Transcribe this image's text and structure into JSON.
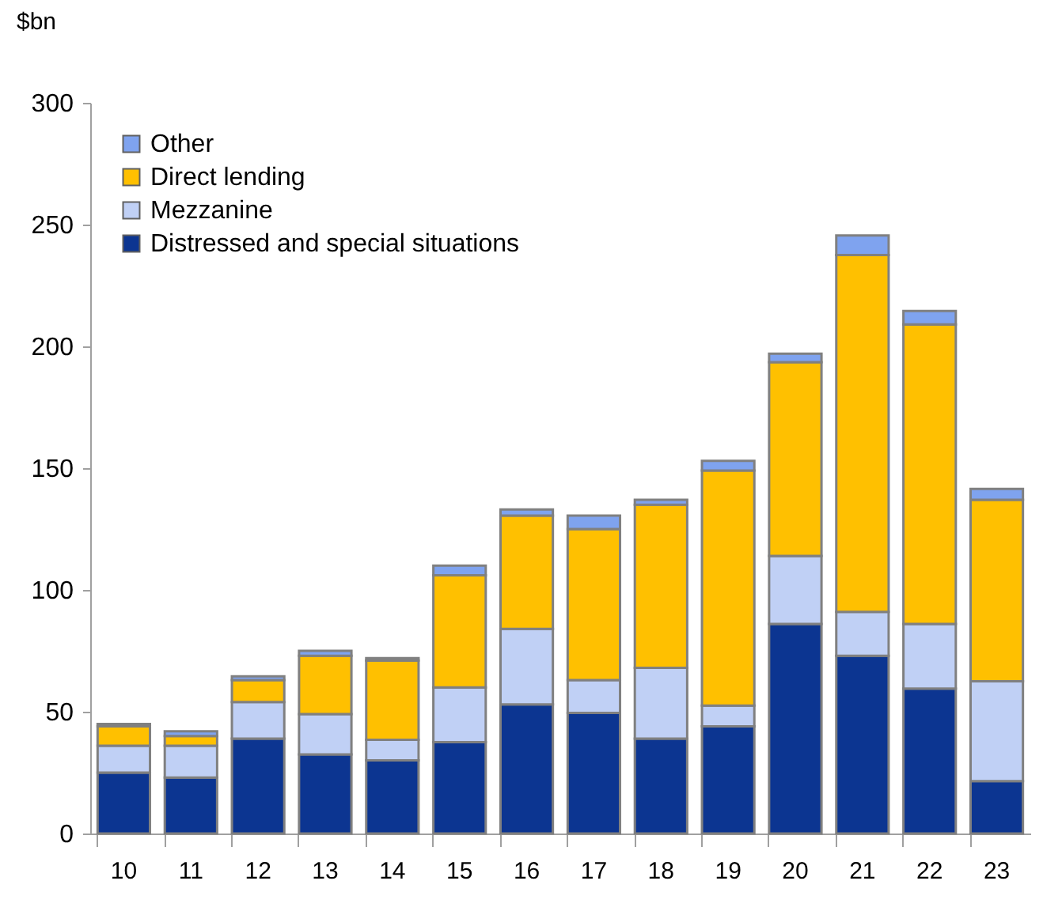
{
  "chart_data": {
    "type": "bar",
    "stacked": true,
    "ylabel": "$bn",
    "categories": [
      "10",
      "11",
      "12",
      "13",
      "14",
      "15",
      "16",
      "17",
      "18",
      "19",
      "20",
      "21",
      "22",
      "23"
    ],
    "series": [
      {
        "name": "Distressed and special situations",
        "color": "#0c3591",
        "values": [
          25,
          23,
          39,
          32.5,
          30,
          37.5,
          53,
          49.5,
          39,
          44,
          86,
          73,
          59.5,
          21.5
        ]
      },
      {
        "name": "Mezzanine",
        "color": "#c0d0f5",
        "values": [
          11,
          13,
          15,
          16.5,
          8.5,
          22.5,
          31,
          13.5,
          29,
          8.5,
          28,
          18,
          26.5,
          41
        ]
      },
      {
        "name": "Direct lending",
        "color": "#ffc000",
        "values": [
          8,
          4,
          9,
          24,
          32.5,
          46,
          46.5,
          62,
          67,
          96.5,
          79.5,
          146.5,
          123,
          74.5
        ]
      },
      {
        "name": "Other",
        "color": "#7fa3ef",
        "values": [
          1,
          2,
          1.5,
          2,
          1,
          4,
          2.5,
          5.5,
          2,
          4,
          3.5,
          8,
          5.5,
          4.5
        ]
      }
    ],
    "ylim": [
      0,
      300
    ],
    "yticks": [
      0,
      50,
      100,
      150,
      200,
      250,
      300
    ],
    "grid": false,
    "legend": "top left"
  }
}
